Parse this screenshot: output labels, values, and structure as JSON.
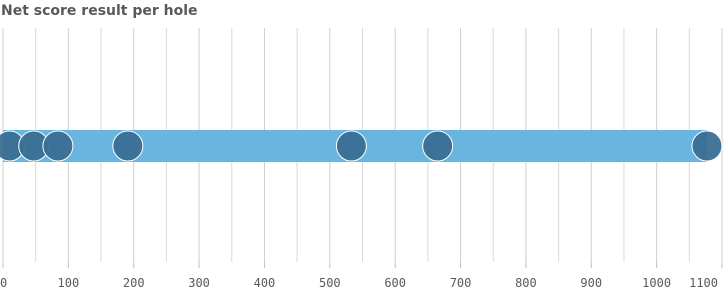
{
  "chart_data": {
    "type": "distribution",
    "title": "Net score result per hole",
    "xlim": [
      0,
      1100
    ],
    "xticks": [
      0,
      100,
      200,
      300,
      400,
      500,
      600,
      700,
      800,
      900,
      1000,
      1100
    ],
    "minor_xticks": [
      50,
      150,
      250,
      350,
      450,
      550,
      650,
      750,
      850,
      950,
      1050
    ],
    "grid": true,
    "range": [
      0,
      1077
    ],
    "range_color": "#6ab4e0",
    "values": [
      10,
      47,
      84,
      191,
      533,
      665,
      1077
    ],
    "color": "#3a6f94"
  }
}
